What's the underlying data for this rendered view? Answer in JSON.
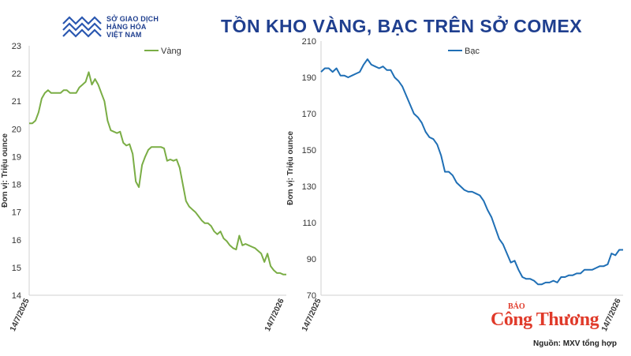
{
  "header": {
    "logo_lines": [
      "SỞ GIAO DỊCH",
      "HÀNG HÓA",
      "VIỆT NAM"
    ],
    "title": "TỒN KHO VÀNG, BẠC TRÊN SỞ COMEX"
  },
  "brand": {
    "small": "BÁO",
    "big": "Công Thương"
  },
  "source": "Nguồn: MXV tổng hợp",
  "colors": {
    "title": "#1f3f8f",
    "gold_line": "#7aad45",
    "silver_line": "#1f6fb5",
    "brand": "#e03a2a"
  },
  "chart_data": [
    {
      "type": "line",
      "ylabel": "Đơn vị: Triệu ounce",
      "ylim": [
        14,
        23
      ],
      "yticks": [
        14,
        15,
        16,
        17,
        18,
        19,
        20,
        21,
        22,
        23
      ],
      "xticks": [
        "14/7/2025",
        "14/7/2026"
      ],
      "legend": "top-center",
      "series": [
        {
          "name": "Vàng",
          "color": "#7aad45",
          "values": [
            20.2,
            20.2,
            20.3,
            20.6,
            21.1,
            21.3,
            21.4,
            21.3,
            21.3,
            21.3,
            21.3,
            21.4,
            21.4,
            21.3,
            21.3,
            21.3,
            21.5,
            21.6,
            21.7,
            22.05,
            21.6,
            21.8,
            21.6,
            21.3,
            21.0,
            20.3,
            19.95,
            19.9,
            19.85,
            19.9,
            19.5,
            19.4,
            19.45,
            19.1,
            18.1,
            17.9,
            18.7,
            19.0,
            19.25,
            19.35,
            19.35,
            19.35,
            19.35,
            19.3,
            18.85,
            18.9,
            18.85,
            18.9,
            18.6,
            18.0,
            17.4,
            17.2,
            17.1,
            17.0,
            16.85,
            16.7,
            16.6,
            16.6,
            16.5,
            16.3,
            16.2,
            16.3,
            16.05,
            15.95,
            15.8,
            15.7,
            15.65,
            16.15,
            15.8,
            15.85,
            15.8,
            15.75,
            15.7,
            15.6,
            15.5,
            15.2,
            15.5,
            15.05,
            14.9,
            14.8,
            14.8,
            14.75,
            14.75
          ]
        }
      ]
    },
    {
      "type": "line",
      "ylabel": "Đơn vị: Triệu ounce",
      "ylim": [
        70,
        210
      ],
      "yticks": [
        70,
        90,
        110,
        130,
        150,
        170,
        190,
        210
      ],
      "xticks": [
        "14/7/2025",
        "14/7/2026"
      ],
      "legend": "top-center",
      "series": [
        {
          "name": "Bạc",
          "color": "#1f6fb5",
          "values": [
            193,
            195,
            195,
            193,
            195,
            191,
            191,
            190,
            191,
            192,
            193,
            197,
            200,
            197,
            196,
            195,
            196,
            194,
            194,
            190,
            188,
            185,
            180,
            175,
            170,
            168,
            165,
            160,
            157,
            156,
            153,
            147,
            138,
            138,
            136,
            132,
            130,
            128,
            127,
            127,
            126,
            125,
            122,
            117,
            113,
            107,
            101,
            98,
            93,
            88,
            89,
            84,
            80,
            79,
            79,
            78,
            76,
            76,
            77,
            77,
            78,
            77,
            80,
            80,
            81,
            81,
            82,
            82,
            84,
            84,
            84,
            85,
            86,
            86,
            87,
            93,
            92,
            95,
            95
          ]
        }
      ]
    }
  ]
}
